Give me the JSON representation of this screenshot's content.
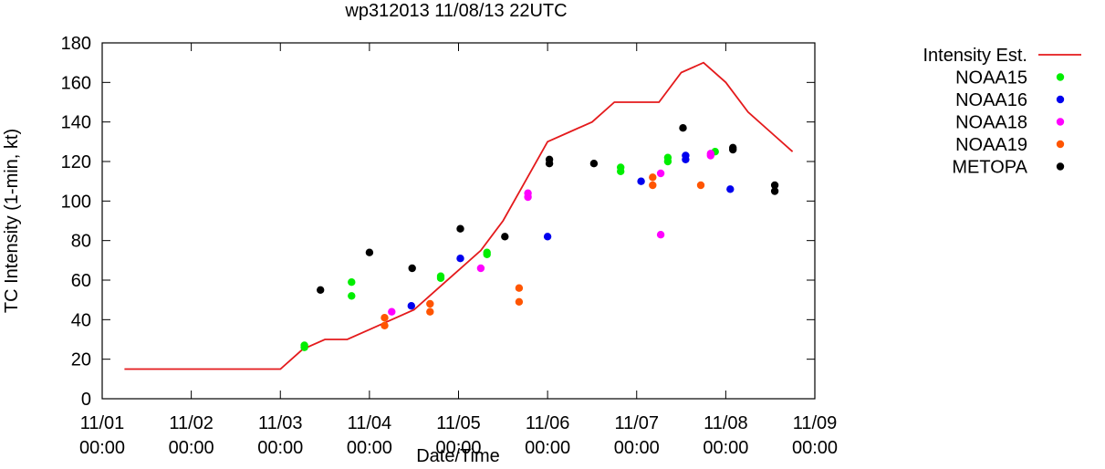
{
  "chart_data": {
    "type": "scatter",
    "title": "wp312013 11/08/13 22UTC",
    "xlabel": "Date/Time",
    "ylabel": "TC Intensity (1-min, kt)",
    "ylim": [
      0,
      180
    ],
    "yticks": [
      0,
      20,
      40,
      60,
      80,
      100,
      120,
      140,
      160,
      180
    ],
    "xlim": [
      0,
      8
    ],
    "xticks": [
      {
        "x": 0,
        "date": "11/01",
        "time": "00:00"
      },
      {
        "x": 1,
        "date": "11/02",
        "time": "00:00"
      },
      {
        "x": 2,
        "date": "11/03",
        "time": "00:00"
      },
      {
        "x": 3,
        "date": "11/04",
        "time": "00:00"
      },
      {
        "x": 4,
        "date": "11/05",
        "time": "00:00"
      },
      {
        "x": 5,
        "date": "11/06",
        "time": "00:00"
      },
      {
        "x": 6,
        "date": "11/07",
        "time": "00:00"
      },
      {
        "x": 7,
        "date": "11/08",
        "time": "00:00"
      },
      {
        "x": 8,
        "date": "11/09",
        "time": "00:00"
      }
    ],
    "grid": false,
    "legend_position": "right",
    "series": [
      {
        "name": "Intensity Est.",
        "kind": "line",
        "color": "#e41a1c",
        "points": [
          [
            0.25,
            15
          ],
          [
            2.0,
            15
          ],
          [
            2.25,
            25
          ],
          [
            2.5,
            30
          ],
          [
            2.75,
            30
          ],
          [
            3.0,
            35
          ],
          [
            3.25,
            40
          ],
          [
            3.5,
            45
          ],
          [
            3.75,
            55
          ],
          [
            4.0,
            65
          ],
          [
            4.25,
            75
          ],
          [
            4.5,
            90
          ],
          [
            4.75,
            110
          ],
          [
            5.0,
            130
          ],
          [
            5.25,
            135
          ],
          [
            5.5,
            140
          ],
          [
            5.75,
            150
          ],
          [
            6.0,
            150
          ],
          [
            6.25,
            150
          ],
          [
            6.5,
            165
          ],
          [
            6.75,
            170
          ],
          [
            7.0,
            160
          ],
          [
            7.25,
            145
          ],
          [
            7.5,
            135
          ],
          [
            7.75,
            125
          ]
        ]
      },
      {
        "name": "NOAA15",
        "kind": "scatter",
        "color": "#00ee00",
        "points": [
          [
            2.27,
            27
          ],
          [
            2.27,
            26
          ],
          [
            2.8,
            59
          ],
          [
            2.8,
            52
          ],
          [
            3.8,
            62
          ],
          [
            3.8,
            61
          ],
          [
            4.32,
            74
          ],
          [
            4.32,
            73
          ],
          [
            5.82,
            117
          ],
          [
            5.82,
            115
          ],
          [
            6.35,
            122
          ],
          [
            6.35,
            120
          ],
          [
            6.88,
            125
          ]
        ]
      },
      {
        "name": "NOAA16",
        "kind": "scatter",
        "color": "#0000ee",
        "points": [
          [
            3.47,
            47
          ],
          [
            4.02,
            71
          ],
          [
            5.0,
            82
          ],
          [
            6.05,
            110
          ],
          [
            6.55,
            123
          ],
          [
            6.55,
            121
          ],
          [
            7.05,
            106
          ]
        ]
      },
      {
        "name": "NOAA18",
        "kind": "scatter",
        "color": "#ff00ff",
        "points": [
          [
            3.25,
            44
          ],
          [
            4.25,
            66
          ],
          [
            4.78,
            104
          ],
          [
            4.78,
            102
          ],
          [
            6.27,
            114
          ],
          [
            6.27,
            83
          ],
          [
            6.83,
            124
          ],
          [
            6.83,
            123
          ]
        ]
      },
      {
        "name": "NOAA19",
        "kind": "scatter",
        "color": "#ff5500",
        "points": [
          [
            3.17,
            41
          ],
          [
            3.17,
            37
          ],
          [
            3.68,
            48
          ],
          [
            3.68,
            44
          ],
          [
            4.68,
            56
          ],
          [
            4.68,
            49
          ],
          [
            6.18,
            112
          ],
          [
            6.18,
            108
          ],
          [
            6.72,
            108
          ]
        ]
      },
      {
        "name": "METOPA",
        "kind": "scatter",
        "color": "#000000",
        "points": [
          [
            2.45,
            55
          ],
          [
            3.0,
            74
          ],
          [
            3.48,
            66
          ],
          [
            4.02,
            86
          ],
          [
            4.52,
            82
          ],
          [
            5.02,
            121
          ],
          [
            5.02,
            119
          ],
          [
            5.52,
            119
          ],
          [
            6.52,
            137
          ],
          [
            7.08,
            127
          ],
          [
            7.08,
            126
          ],
          [
            7.55,
            108
          ],
          [
            7.55,
            105
          ]
        ]
      }
    ]
  }
}
